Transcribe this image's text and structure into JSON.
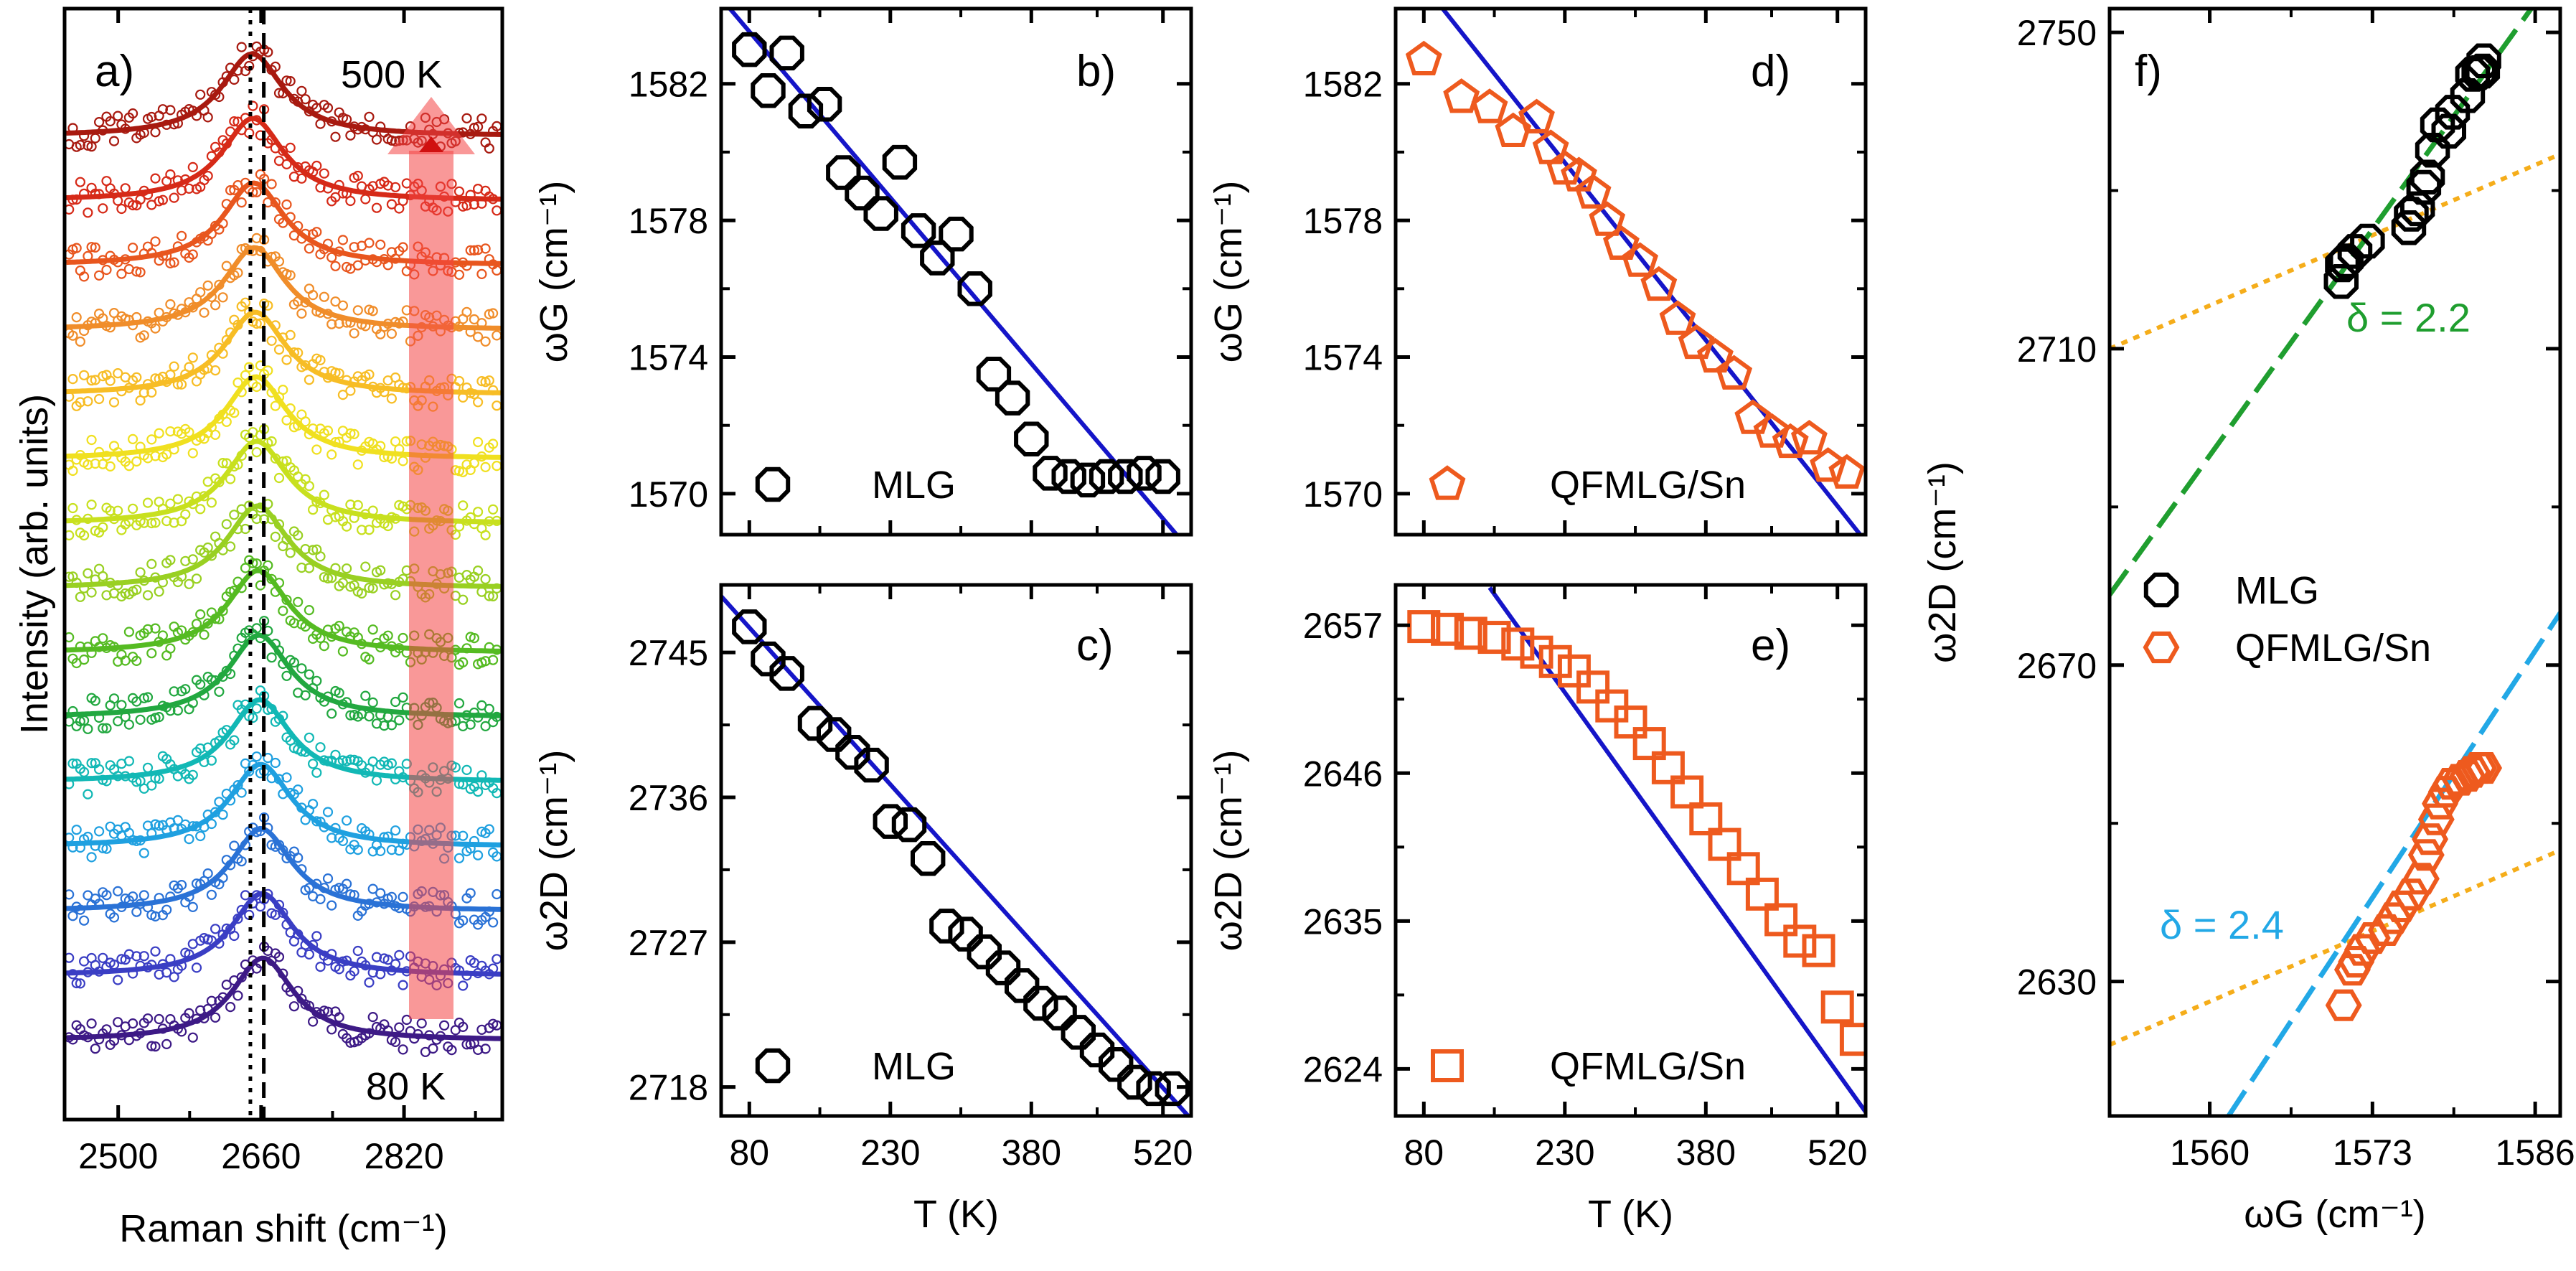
{
  "colors": {
    "fit_line": "#1515c8",
    "mlg_marker": "#000000",
    "qfmlg_marker": "#ee5a1e",
    "mlg_fit": "#1f9e2f",
    "qfmlg_fit": "#22a8e6",
    "ref_line": "#f5ad1a",
    "arrow": "#f44444"
  },
  "chart_data": [
    {
      "panel": "a)",
      "type": "line",
      "xlabel": "Raman shift (cm⁻¹)",
      "ylabel": "Intensity (arb. units)",
      "xlim": [
        2440,
        2930
      ],
      "xticks": [
        2500,
        2660,
        2820
      ],
      "annotations": [
        "500 K",
        "80 K"
      ],
      "dotted_line_x": 2648,
      "dashed_line_x": 2663,
      "spectra_colors": [
        "#3d1a86",
        "#3a3ec4",
        "#2a72d6",
        "#1fa0e0",
        "#12b8b5",
        "#22a840",
        "#55bb22",
        "#99d022",
        "#c8e01e",
        "#f0e020",
        "#f7bd25",
        "#f08d2a",
        "#e8561e",
        "#d62a18",
        "#a81a10"
      ],
      "note": "15 vertically offset spectra, bottom = 80 K, top = 500 K"
    },
    {
      "panel": "b)",
      "type": "scatter",
      "xlabel": "T (K)",
      "ylabel": "ωG (cm⁻¹)",
      "xlim": [
        50,
        550
      ],
      "ylim": [
        1568.8,
        1584.2
      ],
      "xticks": [
        80,
        230,
        380,
        520
      ],
      "yticks": [
        1570,
        1574,
        1578,
        1582
      ],
      "series": [
        {
          "name": "MLG",
          "x": [
            80,
            100,
            120,
            140,
            160,
            180,
            200,
            220,
            240,
            260,
            280,
            300,
            320,
            340,
            360,
            380,
            400,
            420,
            440,
            460,
            480,
            500,
            520
          ],
          "y": [
            1583.0,
            1581.8,
            1582.9,
            1581.2,
            1581.4,
            1579.4,
            1578.8,
            1578.2,
            1579.7,
            1577.7,
            1576.9,
            1577.6,
            1576.0,
            1573.5,
            1572.8,
            1571.6,
            1570.6,
            1570.5,
            1570.4,
            1570.5,
            1570.5,
            1570.6,
            1570.5
          ]
        }
      ],
      "fit": {
        "x": [
          50,
          550
        ],
        "y": [
          1584.5,
          1568.3
        ]
      },
      "legend": [
        "MLG"
      ]
    },
    {
      "panel": "c)",
      "type": "scatter",
      "xlabel": "T (K)",
      "ylabel": "ω2D (cm⁻¹)",
      "xlim": [
        50,
        550
      ],
      "ylim": [
        2716.2,
        2749.2
      ],
      "xticks": [
        80,
        230,
        380,
        520
      ],
      "yticks": [
        2718,
        2727,
        2736,
        2745
      ],
      "series": [
        {
          "name": "MLG",
          "x": [
            80,
            100,
            120,
            150,
            170,
            190,
            210,
            230,
            250,
            270,
            290,
            310,
            330,
            350,
            370,
            390,
            410,
            430,
            450,
            470,
            490,
            510,
            530
          ],
          "y": [
            2746.6,
            2744.6,
            2743.7,
            2740.6,
            2739.9,
            2738.8,
            2738.0,
            2734.5,
            2734.3,
            2732.2,
            2728.0,
            2727.5,
            2726.4,
            2725.4,
            2724.3,
            2723.2,
            2722.6,
            2721.4,
            2720.3,
            2719.4,
            2718.3,
            2717.9,
            2717.9
          ]
        }
      ],
      "fit": {
        "x": [
          50,
          550
        ],
        "y": [
          2748.5,
          2716.0
        ]
      },
      "legend": [
        "MLG"
      ]
    },
    {
      "panel": "d)",
      "type": "scatter",
      "xlabel": "T (K)",
      "ylabel": "ωG (cm⁻¹)",
      "xlim": [
        50,
        550
      ],
      "ylim": [
        1568.8,
        1584.2
      ],
      "xticks": [
        80,
        230,
        380,
        520
      ],
      "yticks": [
        1570,
        1574,
        1578,
        1582
      ],
      "series": [
        {
          "name": "QFMLG/Sn",
          "x": [
            80,
            120,
            150,
            175,
            200,
            215,
            230,
            245,
            260,
            275,
            290,
            310,
            330,
            350,
            370,
            390,
            410,
            430,
            450,
            470,
            490,
            510,
            530
          ],
          "y": [
            1582.7,
            1581.6,
            1581.3,
            1580.6,
            1581.0,
            1580.1,
            1579.5,
            1579.3,
            1578.8,
            1578.0,
            1577.3,
            1576.8,
            1576.1,
            1575.1,
            1574.4,
            1574.0,
            1573.5,
            1572.2,
            1571.8,
            1571.5,
            1571.6,
            1570.8,
            1570.6
          ]
        }
      ],
      "fit": {
        "x": [
          100,
          550
        ],
        "y": [
          1584.2,
          1568.6
        ]
      },
      "legend": [
        "QFMLG/Sn"
      ]
    },
    {
      "panel": "e)",
      "type": "scatter",
      "xlabel": "T (K)",
      "ylabel": "ω2D (cm⁻¹)",
      "xlim": [
        50,
        550
      ],
      "ylim": [
        2620.5,
        2660.0
      ],
      "xticks": [
        80,
        230,
        380,
        520
      ],
      "yticks": [
        2624,
        2635,
        2646,
        2657
      ],
      "series": [
        {
          "name": "QFMLG/Sn",
          "x": [
            80,
            105,
            130,
            155,
            180,
            200,
            220,
            240,
            260,
            280,
            300,
            320,
            340,
            360,
            380,
            400,
            420,
            440,
            460,
            480,
            500,
            520,
            540
          ],
          "y": [
            2656.9,
            2656.7,
            2656.4,
            2656.1,
            2655.6,
            2655.0,
            2654.3,
            2653.6,
            2652.4,
            2651.0,
            2649.8,
            2648.2,
            2646.4,
            2644.6,
            2642.6,
            2640.7,
            2638.9,
            2637.0,
            2635.1,
            2633.5,
            2632.8,
            2628.6,
            2626.2
          ]
        }
      ],
      "fit": {
        "x": [
          150,
          550
        ],
        "y": [
          2659.8,
          2620.8
        ]
      },
      "legend": [
        "QFMLG/Sn"
      ]
    },
    {
      "panel": "f)",
      "type": "scatter",
      "xlabel": "ωG (cm⁻¹)",
      "ylabel": "ω2D (cm⁻¹)",
      "xlim": [
        1552,
        1588
      ],
      "ylim": [
        2613,
        2753
      ],
      "xticks": [
        1560,
        1573,
        1586
      ],
      "yticks": [
        2630,
        2670,
        2710,
        2750
      ],
      "series": [
        {
          "name": "MLG",
          "x": [
            1570.5,
            1570.6,
            1570.9,
            1571.6,
            1572.6,
            1575.9,
            1576.1,
            1576.6,
            1577.1,
            1577.4,
            1577.8,
            1578.2,
            1579.1,
            1579.4,
            1580.6,
            1581.0,
            1581.5,
            1581.8,
            1581.9
          ],
          "y": [
            2718.5,
            2720.6,
            2721.1,
            2722.3,
            2723.6,
            2725.3,
            2727.0,
            2727.7,
            2730.4,
            2731.7,
            2735.1,
            2738.3,
            2737.5,
            2739.9,
            2742.0,
            2744.7,
            2744.9,
            2745.1,
            2746.4
          ]
        },
        {
          "name": "QFMLG/Sn",
          "x": [
            1570.7,
            1571.4,
            1571.7,
            1572.2,
            1573.0,
            1574.1,
            1574.7,
            1575.3,
            1576.1,
            1576.9,
            1577.3,
            1577.6,
            1578.1,
            1578.4,
            1578.9,
            1579.3,
            1580.0,
            1580.6,
            1581.0,
            1581.5,
            1581.9
          ],
          "y": [
            2627.0,
            2631.5,
            2632.5,
            2634.0,
            2635.5,
            2636.5,
            2638.0,
            2639.5,
            2641.0,
            2643.0,
            2646.0,
            2648.0,
            2650.5,
            2652.5,
            2654.0,
            2655.0,
            2655.5,
            2656.0,
            2656.5,
            2657.0,
            2657.0
          ]
        }
      ],
      "fits": [
        {
          "name": "MLG fit",
          "x": [
            1552,
            1586.5
          ],
          "y": [
            2678.9,
            2754.8
          ]
        },
        {
          "name": "QFMLG/Sn fit",
          "x": [
            1561.5,
            1588
          ],
          "y": [
            2613.0,
            2676.6
          ]
        }
      ],
      "reference_lines": [
        {
          "x": [
            1552,
            1588
          ],
          "y": [
            2710.0,
            2734.6
          ]
        },
        {
          "x": [
            1552,
            1588
          ],
          "y": [
            2622.0,
            2646.6
          ]
        }
      ],
      "annotations": [
        "δ = 2.2",
        "δ = 2.4"
      ],
      "legend": [
        "MLG",
        "QFMLG/Sn"
      ]
    }
  ]
}
